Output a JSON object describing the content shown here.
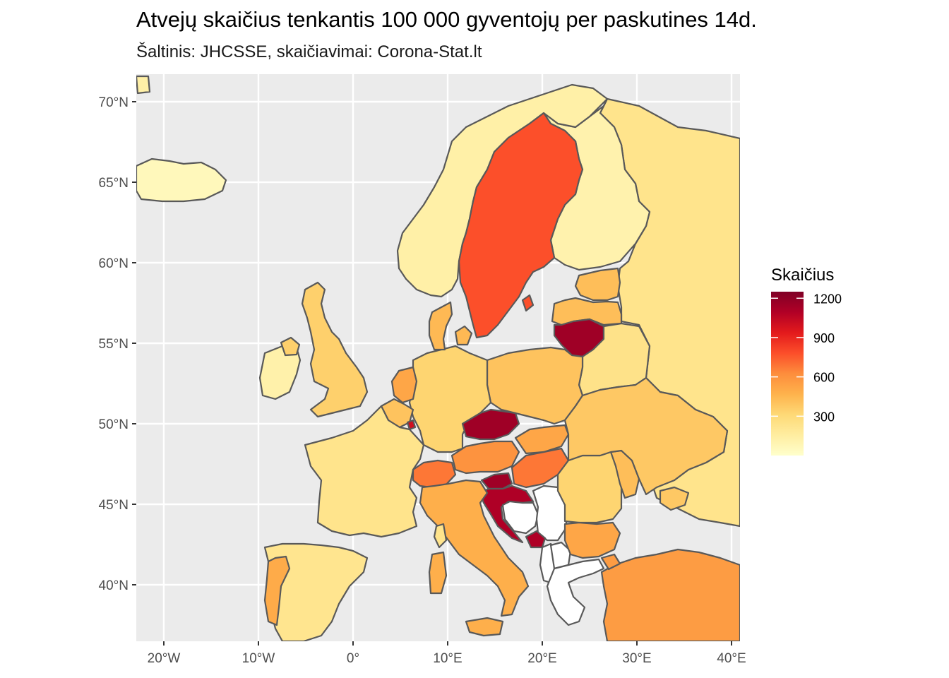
{
  "title": "Atvejų skaičius tenkantis 100 000 gyventojų per paskutines 14d.",
  "subtitle": "Šaltinis: JHCSSE, skaičiavimai: Corona-Stat.lt",
  "map": {
    "panel_background": "#ebebeb",
    "gridline_color": "#ffffff",
    "border_color": "#595959",
    "no_data_fill": "#ffffff",
    "lon_ticks": [
      "20°W",
      "10°W",
      "0°",
      "10°E",
      "20°E",
      "30°E",
      "40°E"
    ],
    "lat_ticks": [
      "70°N",
      "65°N",
      "60°N",
      "55°N",
      "50°N",
      "45°N",
      "40°N"
    ]
  },
  "legend": {
    "title": "Skaičius",
    "tick_labels": [
      "1200",
      "900",
      "600",
      "300"
    ],
    "tick_values": [
      1200,
      900,
      600,
      300
    ],
    "scale_min": 0,
    "scale_max": 1250,
    "gradient_colors": [
      "#ffffcc",
      "#ffeda0",
      "#fed976",
      "#feb24c",
      "#fd8d3c",
      "#fc4e2a",
      "#e31a1c",
      "#b10026",
      "#800026"
    ]
  },
  "chart_data": {
    "type": "choropleth",
    "title": "Atvejų skaičius tenkantis 100 000 gyventojų per paskutines 14d.",
    "subtitle": "Šaltinis: JHCSSE, skaičiavimai: Corona-Stat.lt",
    "legend_title": "Skaičius",
    "xlim": [
      -20,
      40
    ],
    "ylim": [
      37,
      71
    ],
    "regions": [
      {
        "name": "Lithuania",
        "value": 1150
      },
      {
        "name": "Czechia",
        "value": 1150
      },
      {
        "name": "Slovenia",
        "value": 1150
      },
      {
        "name": "Croatia",
        "value": 1100
      },
      {
        "name": "Montenegro",
        "value": 1100
      },
      {
        "name": "Luxembourg",
        "value": 1000
      },
      {
        "name": "Sweden",
        "value": 780
      },
      {
        "name": "Switzerland",
        "value": 680
      },
      {
        "name": "Hungary",
        "value": 680
      },
      {
        "name": "Austria",
        "value": 600
      },
      {
        "name": "Netherlands",
        "value": 520
      },
      {
        "name": "Portugal",
        "value": 500
      },
      {
        "name": "Italy",
        "value": 480
      },
      {
        "name": "Bulgaria",
        "value": 520
      },
      {
        "name": "Turkey",
        "value": 560
      },
      {
        "name": "Slovakia",
        "value": 520
      },
      {
        "name": "Latvia",
        "value": 420
      },
      {
        "name": "Estonia",
        "value": 420
      },
      {
        "name": "Denmark",
        "value": 440
      },
      {
        "name": "Poland",
        "value": 400
      },
      {
        "name": "Ukraine",
        "value": 380
      },
      {
        "name": "Moldova",
        "value": 420
      },
      {
        "name": "Belgium",
        "value": 400
      },
      {
        "name": "Germany",
        "value": 330
      },
      {
        "name": "United Kingdom",
        "value": 350
      },
      {
        "name": "Belarus",
        "value": 240
      },
      {
        "name": "Romania",
        "value": 330
      },
      {
        "name": "Russia",
        "value": 230
      },
      {
        "name": "France",
        "value": 230
      },
      {
        "name": "Spain",
        "value": 220
      },
      {
        "name": "Norway",
        "value": 130
      },
      {
        "name": "Finland",
        "value": 110
      },
      {
        "name": "Ireland",
        "value": 120
      },
      {
        "name": "Iceland",
        "value": 60
      }
    ]
  }
}
